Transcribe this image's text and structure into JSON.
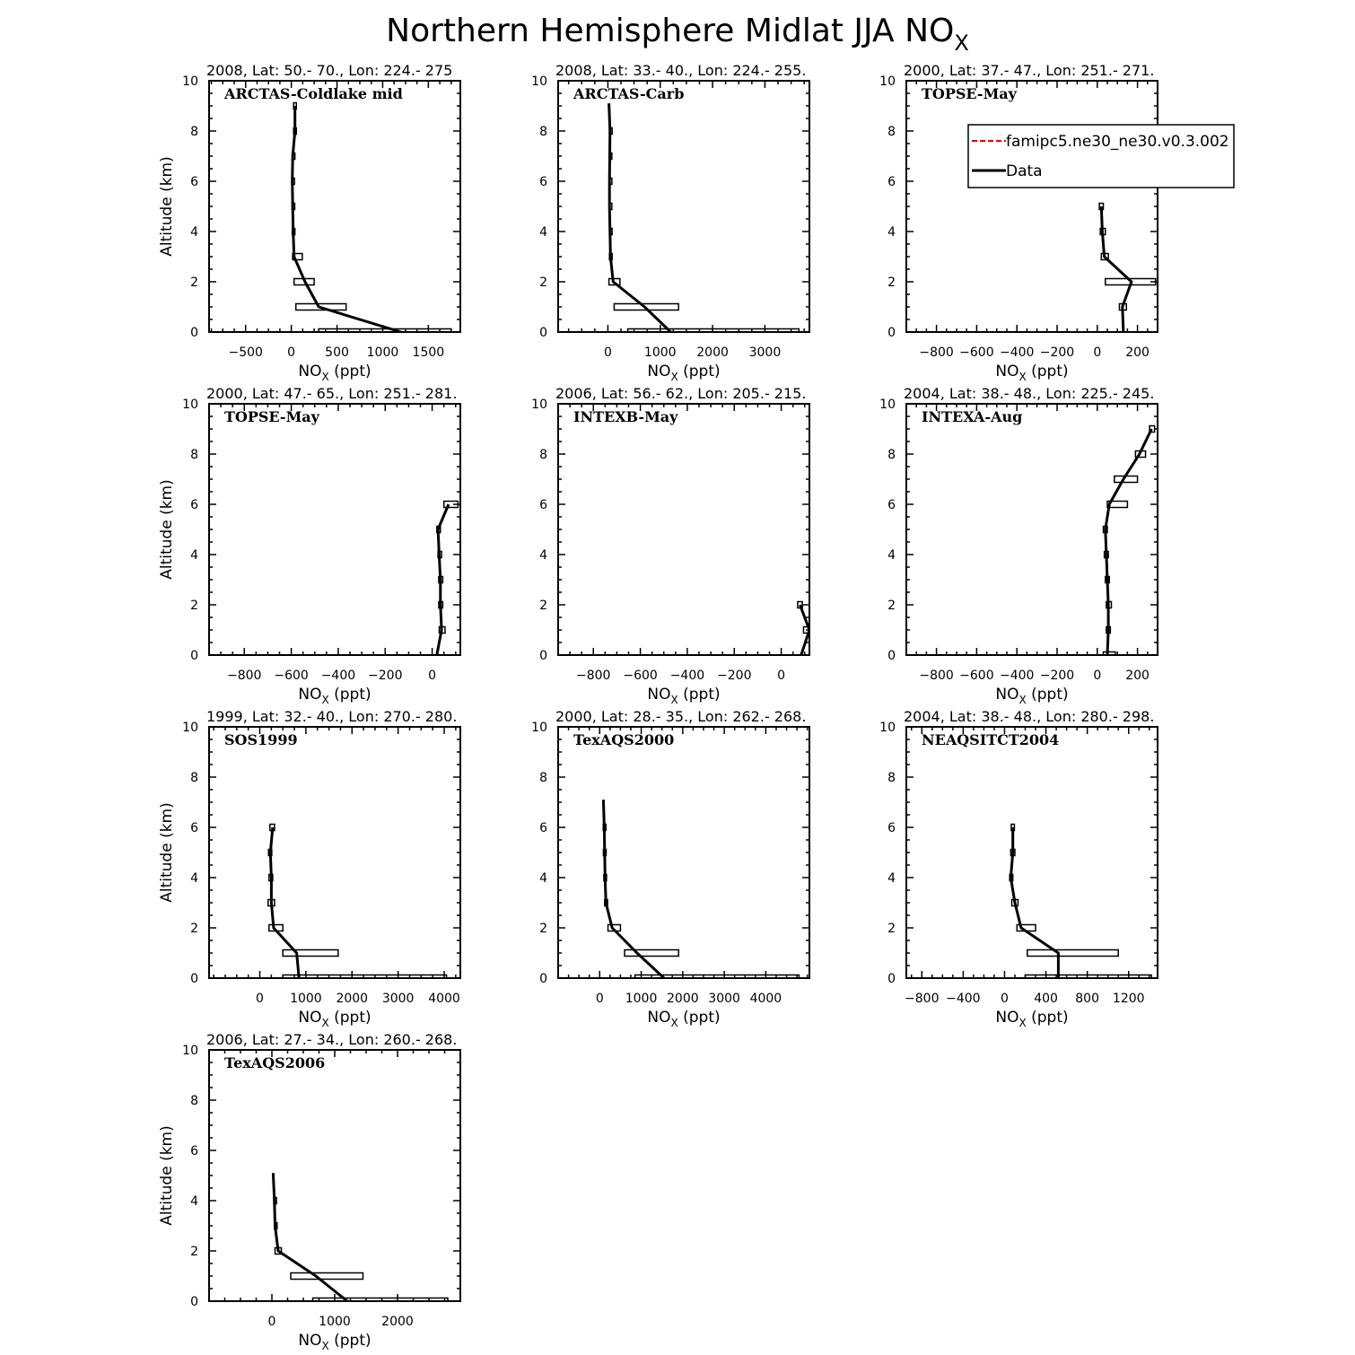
{
  "figure": {
    "title": "Northern Hemisphere Midlat JJA NO",
    "title_subscript": "X"
  },
  "legend": {
    "entries": [
      {
        "label": "famipc5.ne30_ne30.v0.3.002",
        "color": "#e00000",
        "style": "dashed"
      },
      {
        "label": "Data",
        "color": "#000000",
        "style": "solid"
      }
    ]
  },
  "chart_data": [
    {
      "type": "line",
      "campaign": "ARCTAS-Coldlake mid",
      "header": "2008, Lat:  50.- 70., Lon: 224.- 275",
      "xlabel": "NO",
      "xlabel_sub": "X",
      "xlabel_unit": " (ppt)",
      "ylabel": "Altitude (km)",
      "xlim": [
        -900,
        1850
      ],
      "ylim": [
        0,
        10
      ],
      "xticks": [
        -500,
        0,
        500,
        1000,
        1500
      ],
      "yticks": [
        0,
        2,
        4,
        6,
        8,
        10
      ],
      "series": [
        {
          "name": "Data",
          "points": [
            [
              1200,
              0
            ],
            [
              300,
              1
            ],
            [
              150,
              2
            ],
            [
              30,
              3
            ],
            [
              20,
              4
            ],
            [
              15,
              5
            ],
            [
              10,
              6
            ],
            [
              15,
              7
            ],
            [
              40,
              8
            ],
            [
              40,
              9
            ]
          ]
        }
      ],
      "boxes": [
        [
          300,
          1750,
          0
        ],
        [
          50,
          600,
          1
        ],
        [
          30,
          250,
          2
        ],
        [
          15,
          120,
          3
        ],
        [
          10,
          30,
          4
        ],
        [
          8,
          25,
          5
        ],
        [
          5,
          20,
          6
        ],
        [
          10,
          25,
          7
        ],
        [
          25,
          55,
          8
        ],
        [
          25,
          55,
          9
        ]
      ]
    },
    {
      "type": "line",
      "campaign": "ARCTAS-Carb",
      "header": "2008, Lat:  33.- 40., Lon: 224.- 255.",
      "xlabel": "NO",
      "xlabel_sub": "X",
      "xlabel_unit": " (ppt)",
      "ylabel": "",
      "xlim": [
        -950,
        3850
      ],
      "ylim": [
        0,
        10
      ],
      "xticks": [
        0,
        1000,
        2000,
        3000
      ],
      "yticks": [
        0,
        2,
        4,
        6,
        8,
        10
      ],
      "series": [
        {
          "name": "Data",
          "points": [
            [
              1200,
              0
            ],
            [
              700,
              1
            ],
            [
              100,
              2
            ],
            [
              50,
              3
            ],
            [
              40,
              4
            ],
            [
              30,
              5
            ],
            [
              30,
              6
            ],
            [
              35,
              7
            ],
            [
              40,
              8
            ],
            [
              20,
              9.1
            ]
          ]
        }
      ],
      "boxes": [
        [
          380,
          3650,
          0
        ],
        [
          120,
          1350,
          1
        ],
        [
          20,
          230,
          2
        ],
        [
          30,
          70,
          3
        ],
        [
          30,
          50,
          4
        ],
        [
          25,
          40,
          5
        ],
        [
          25,
          40,
          6
        ],
        [
          25,
          45,
          7
        ],
        [
          30,
          55,
          8
        ]
      ]
    },
    {
      "type": "line",
      "campaign": "TOPSE-May",
      "header": "2000, Lat: 37.- 47., Lon: 251.- 271.",
      "xlabel": "NO",
      "xlabel_sub": "X",
      "xlabel_unit": " (ppt)",
      "ylabel": "",
      "xlim": [
        -950,
        300
      ],
      "ylim": [
        0,
        10
      ],
      "xticks": [
        -800,
        -600,
        -400,
        -200,
        0,
        200
      ],
      "yticks": [
        0,
        2,
        4,
        6,
        8,
        10
      ],
      "series": [
        {
          "name": "Data",
          "points": [
            [
              130,
              0
            ],
            [
              125,
              1
            ],
            [
              170,
              2
            ],
            [
              35,
              3
            ],
            [
              25,
              4
            ],
            [
              20,
              5
            ]
          ]
        }
      ],
      "boxes": [
        [
          110,
          145,
          1
        ],
        [
          40,
          290,
          2
        ],
        [
          20,
          55,
          3
        ],
        [
          15,
          40,
          4
        ],
        [
          10,
          30,
          5
        ]
      ]
    },
    {
      "type": "line",
      "campaign": "TOPSE-May",
      "header": "2000, Lat: 47.- 65., Lon: 251.- 281.",
      "xlabel": "NO",
      "xlabel_sub": "X",
      "xlabel_unit": " (ppt)",
      "ylabel": "Altitude (km)",
      "xlim": [
        -950,
        120
      ],
      "ylim": [
        0,
        10
      ],
      "xticks": [
        -800,
        -600,
        -400,
        -200,
        0
      ],
      "yticks": [
        0,
        2,
        4,
        6,
        8,
        10
      ],
      "series": [
        {
          "name": "Data",
          "points": [
            [
              20,
              0
            ],
            [
              40,
              1
            ],
            [
              35,
              2
            ],
            [
              35,
              3
            ],
            [
              30,
              4
            ],
            [
              25,
              5
            ],
            [
              70,
              6
            ]
          ]
        }
      ],
      "boxes": [
        [
          30,
          55,
          1
        ],
        [
          28,
          45,
          2
        ],
        [
          28,
          45,
          3
        ],
        [
          25,
          40,
          4
        ],
        [
          20,
          35,
          5
        ],
        [
          50,
          110,
          6
        ]
      ]
    },
    {
      "type": "line",
      "campaign": "INTEXB-May",
      "header": "2006, Lat: 56.- 62., Lon: 205.- 215.",
      "xlabel": "NO",
      "xlabel_sub": "X",
      "xlabel_unit": " (ppt)",
      "ylabel": "",
      "xlim": [
        -950,
        120
      ],
      "ylim": [
        0,
        10
      ],
      "xticks": [
        -800,
        -600,
        -400,
        -200,
        0
      ],
      "yticks": [
        0,
        2,
        4,
        6,
        8,
        10
      ],
      "series": [
        {
          "name": "Data",
          "points": [
            [
              85,
              0
            ],
            [
              120,
              1
            ],
            [
              80,
              2
            ]
          ]
        }
      ],
      "boxes": [
        [
          95,
          120,
          1
        ],
        [
          70,
          90,
          2
        ]
      ]
    },
    {
      "type": "line",
      "campaign": "INTEXA-Aug",
      "header": "2004, Lat: 38.- 48., Lon: 225.- 245.",
      "xlabel": "NO",
      "xlabel_sub": "X",
      "xlabel_unit": " (ppt)",
      "ylabel": "",
      "xlim": [
        -950,
        300
      ],
      "ylim": [
        0,
        10
      ],
      "xticks": [
        -800,
        -600,
        -400,
        -200,
        0,
        200
      ],
      "yticks": [
        0,
        2,
        4,
        6,
        8,
        10
      ],
      "series": [
        {
          "name": "Data",
          "points": [
            [
              50,
              0
            ],
            [
              55,
              1
            ],
            [
              55,
              2
            ],
            [
              50,
              3
            ],
            [
              45,
              4
            ],
            [
              40,
              5
            ],
            [
              60,
              6
            ],
            [
              130,
              7
            ],
            [
              210,
              8
            ],
            [
              270,
              9
            ]
          ]
        }
      ],
      "boxes": [
        [
          30,
          90,
          0
        ],
        [
          45,
          65,
          1
        ],
        [
          45,
          70,
          2
        ],
        [
          40,
          60,
          3
        ],
        [
          35,
          55,
          4
        ],
        [
          30,
          50,
          5
        ],
        [
          50,
          150,
          6
        ],
        [
          85,
          200,
          7
        ],
        [
          190,
          240,
          8
        ],
        [
          260,
          285,
          9
        ]
      ]
    },
    {
      "type": "line",
      "campaign": "SOS1999",
      "header": "1999, Lat: 32.- 40., Lon: 270.- 280.",
      "xlabel": "NO",
      "xlabel_sub": "X",
      "xlabel_unit": " (ppt)",
      "ylabel": "Altitude (km)",
      "xlim": [
        -1100,
        4350
      ],
      "ylim": [
        0,
        10
      ],
      "xticks": [
        0,
        1000,
        2000,
        3000,
        4000
      ],
      "yticks": [
        0,
        2,
        4,
        6,
        8,
        10
      ],
      "series": [
        {
          "name": "Data",
          "points": [
            [
              850,
              0
            ],
            [
              800,
              1
            ],
            [
              300,
              2
            ],
            [
              250,
              3
            ],
            [
              250,
              4
            ],
            [
              230,
              5
            ],
            [
              280,
              6
            ]
          ]
        }
      ],
      "boxes": [
        [
          500,
          4050,
          0
        ],
        [
          500,
          1700,
          1
        ],
        [
          200,
          500,
          2
        ],
        [
          180,
          320,
          3
        ],
        [
          200,
          280,
          4
        ],
        [
          190,
          260,
          5
        ],
        [
          220,
          320,
          6
        ]
      ]
    },
    {
      "type": "line",
      "campaign": "TexAQS2000",
      "header": "2000, Lat: 28.- 35., Lon: 262.- 268.",
      "xlabel": "NO",
      "xlabel_sub": "X",
      "xlabel_unit": " (ppt)",
      "ylabel": "",
      "xlim": [
        -1000,
        5050
      ],
      "ylim": [
        0,
        10
      ],
      "xticks": [
        0,
        1000,
        2000,
        3000,
        4000
      ],
      "yticks": [
        0,
        2,
        4,
        6,
        8,
        10
      ],
      "series": [
        {
          "name": "Data",
          "points": [
            [
              1550,
              0
            ],
            [
              900,
              1
            ],
            [
              300,
              2
            ],
            [
              150,
              3
            ],
            [
              130,
              4
            ],
            [
              120,
              5
            ],
            [
              110,
              6
            ],
            [
              90,
              7.1
            ]
          ]
        }
      ],
      "boxes": [
        [
          850,
          4800,
          0
        ],
        [
          600,
          1900,
          1
        ],
        [
          200,
          500,
          2
        ],
        [
          120,
          190,
          3
        ],
        [
          100,
          160,
          4
        ],
        [
          90,
          150,
          5
        ],
        [
          85,
          145,
          6
        ]
      ]
    },
    {
      "type": "line",
      "campaign": "NEAQSITCT2004",
      "header": "2004, Lat: 38.- 48., Lon: 280.- 298.",
      "xlabel": "NO",
      "xlabel_sub": "X",
      "xlabel_unit": " (ppt)",
      "ylabel": "",
      "xlim": [
        -950,
        1480
      ],
      "ylim": [
        0,
        10
      ],
      "xticks": [
        -800,
        -400,
        0,
        400,
        800,
        1200
      ],
      "yticks": [
        0,
        2,
        4,
        6,
        8,
        10
      ],
      "series": [
        {
          "name": "Data",
          "points": [
            [
              520,
              0
            ],
            [
              520,
              1
            ],
            [
              160,
              2
            ],
            [
              100,
              3
            ],
            [
              60,
              4
            ],
            [
              80,
              5
            ],
            [
              80,
              6
            ]
          ]
        }
      ],
      "boxes": [
        [
          200,
          1420,
          0
        ],
        [
          220,
          1100,
          1
        ],
        [
          120,
          300,
          2
        ],
        [
          70,
          130,
          3
        ],
        [
          50,
          80,
          4
        ],
        [
          60,
          100,
          5
        ],
        [
          65,
          95,
          6
        ]
      ]
    },
    {
      "type": "line",
      "campaign": "TexAQS2006",
      "header": "2006, Lat: 27.- 34., Lon: 260.- 268.",
      "xlabel": "NO",
      "xlabel_sub": "X",
      "xlabel_unit": " (ppt)",
      "ylabel": "Altitude (km)",
      "xlim": [
        -1000,
        3000
      ],
      "ylim": [
        0,
        10
      ],
      "xticks": [
        0,
        1000,
        2000
      ],
      "yticks": [
        0,
        2,
        4,
        6,
        8,
        10
      ],
      "series": [
        {
          "name": "Data",
          "points": [
            [
              1200,
              0
            ],
            [
              700,
              1
            ],
            [
              100,
              2
            ],
            [
              50,
              3
            ],
            [
              40,
              4
            ],
            [
              20,
              5.1
            ]
          ]
        }
      ],
      "boxes": [
        [
          650,
          2800,
          0
        ],
        [
          300,
          1450,
          1
        ],
        [
          50,
          150,
          2
        ],
        [
          40,
          80,
          3
        ],
        [
          30,
          70,
          4
        ]
      ]
    }
  ]
}
